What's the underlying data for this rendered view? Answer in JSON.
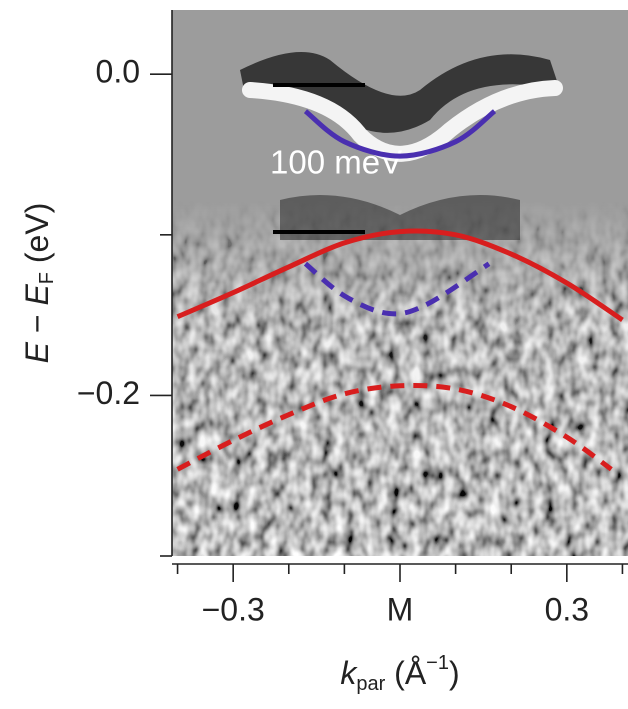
{
  "chart_data": {
    "type": "line",
    "annotation": "100 meV",
    "xlabel": [
      "k",
      "par",
      " (Å",
      "−1",
      ")"
    ],
    "ylabel": [
      "E",
      " − ",
      "E",
      "F",
      " (eV)"
    ],
    "xlim": [
      -0.41,
      0.41
    ],
    "ylim": [
      -0.3,
      0.04
    ],
    "xticks": [
      {
        "value": -0.3,
        "label": "−0.3"
      },
      {
        "value": 0,
        "label": "M"
      },
      0.3
    ],
    "xminor": [
      -0.4,
      -0.2,
      -0.1,
      0.1,
      0.2,
      0.4
    ],
    "yticks": [
      {
        "value": 0,
        "label": "0.0"
      },
      {
        "value": -0.2,
        "label": "−0.2"
      }
    ],
    "yminor": [
      -0.1,
      -0.3
    ],
    "series": [
      {
        "color": "#4a2fb0",
        "style": "solid",
        "x": [
          -0.17,
          -0.1,
          0,
          0.1,
          0.17
        ],
        "values": [
          -0.023,
          -0.042,
          -0.051,
          -0.042,
          -0.023
        ]
      },
      {
        "color": "#d81e1e",
        "style": "solid",
        "x": [
          -0.4,
          -0.3,
          -0.2,
          -0.1,
          0,
          0.1,
          0.2,
          0.3,
          0.4
        ],
        "values": [
          -0.151,
          -0.136,
          -0.12,
          -0.105,
          -0.098,
          -0.1,
          -0.112,
          -0.13,
          -0.153
        ]
      },
      {
        "color": "#4a2fb0",
        "style": "dashed",
        "x": [
          -0.17,
          -0.1,
          -0.02,
          0.05,
          0.16
        ],
        "values": [
          -0.118,
          -0.138,
          -0.149,
          -0.143,
          -0.118
        ]
      },
      {
        "color": "#d81e1e",
        "style": "dashed",
        "x": [
          -0.4,
          -0.3,
          -0.2,
          -0.1,
          0,
          0.1,
          0.2,
          0.3,
          0.38
        ],
        "values": [
          -0.246,
          -0.228,
          -0.212,
          -0.199,
          -0.194,
          -0.196,
          -0.207,
          -0.226,
          -0.246
        ]
      }
    ]
  }
}
